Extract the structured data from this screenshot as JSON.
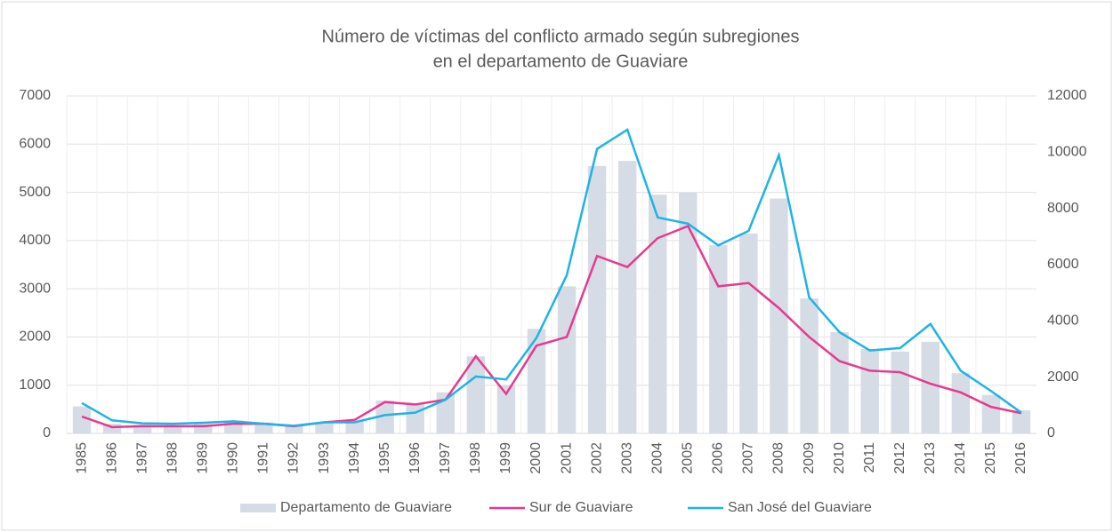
{
  "chart_data": {
    "type": "bar_line",
    "title": "Número de víctimas del conflicto armado según subregiones",
    "subtitle": "en el departamento de Guaviare",
    "categories": [
      "1985",
      "1986",
      "1987",
      "1988",
      "1989",
      "1990",
      "1991",
      "1992",
      "1993",
      "1994",
      "1995",
      "1996",
      "1997",
      "1998",
      "1999",
      "2000",
      "2001",
      "2002",
      "2003",
      "2004",
      "2005",
      "2006",
      "2007",
      "2008",
      "2009",
      "2010",
      "2011",
      "2012",
      "2013",
      "2014",
      "2015",
      "2016"
    ],
    "series": [
      {
        "name": "Departamento de Guaviare",
        "type": "bar",
        "axis": "y2",
        "color": "#d6dce5",
        "values": [
          960,
          340,
          310,
          290,
          330,
          450,
          390,
          260,
          390,
          430,
          1170,
          1060,
          1460,
          2740,
          1710,
          3720,
          5230,
          9510,
          9690,
          8490,
          8570,
          6690,
          7110,
          8350,
          4800,
          3600,
          3000,
          2910,
          3260,
          2140,
          1370,
          820
        ]
      },
      {
        "name": "Sur de Guaviare",
        "type": "line",
        "color": "#e8388f",
        "values": [
          350,
          130,
          150,
          150,
          150,
          200,
          200,
          150,
          230,
          280,
          650,
          600,
          700,
          1600,
          820,
          1820,
          2000,
          3680,
          3450,
          4050,
          4300,
          3050,
          3120,
          2600,
          2000,
          1500,
          1300,
          1270,
          1030,
          850,
          550,
          420
        ]
      },
      {
        "name": "San José del Guaviare",
        "type": "line",
        "color": "#1fb3e6",
        "values": [
          630,
          270,
          210,
          200,
          220,
          250,
          200,
          160,
          230,
          230,
          380,
          430,
          700,
          1180,
          1120,
          1980,
          3280,
          5900,
          6300,
          4480,
          4350,
          3900,
          4200,
          5770,
          2820,
          2100,
          1720,
          1770,
          2270,
          1300,
          880,
          430
        ]
      }
    ],
    "ylim": [
      0,
      7000
    ],
    "yticks": [
      0,
      1000,
      2000,
      3000,
      4000,
      5000,
      6000,
      7000
    ],
    "y2lim": [
      0,
      12000
    ],
    "y2ticks": [
      0,
      2000,
      4000,
      6000,
      8000,
      10000,
      12000
    ],
    "grid": true,
    "legend": "bottom"
  }
}
